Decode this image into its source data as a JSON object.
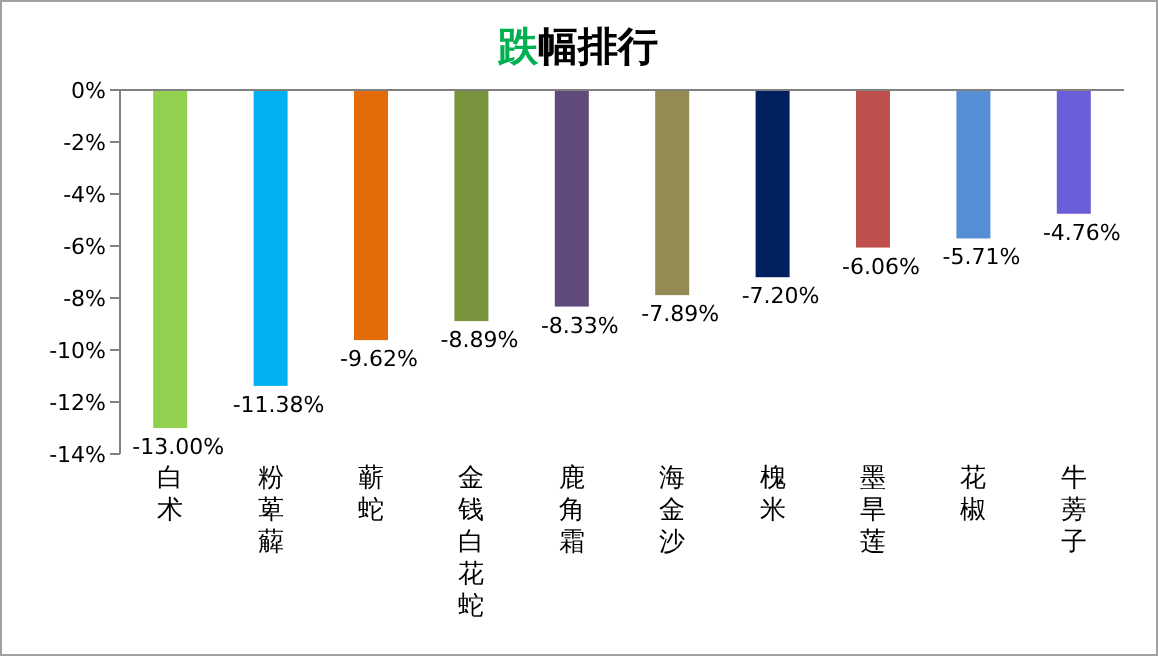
{
  "chart_data": {
    "type": "bar",
    "title": "跌幅排行",
    "categories": [
      "白术",
      "粉萆薢",
      "蕲蛇",
      "金钱白花蛇",
      "鹿角霜",
      "海金沙",
      "槐米",
      "墨旱莲",
      "花椒",
      "牛蒡子"
    ],
    "values": [
      -13.0,
      -11.38,
      -9.62,
      -8.89,
      -8.33,
      -7.89,
      -7.2,
      -6.06,
      -5.71,
      -4.76
    ],
    "colors": [
      "#92d050",
      "#00b0f0",
      "#e36c09",
      "#77933c",
      "#604a7b",
      "#948a54",
      "#002060",
      "#c0504d",
      "#558ed5",
      "#6a5fd8"
    ],
    "value_labels": [
      "-13.00%",
      "-11.38%",
      "-9.62%",
      "-8.89%",
      "-8.33%",
      "-7.89%",
      "-7.20%",
      "-6.06%",
      "-5.71%",
      "-4.76%"
    ],
    "ylim": [
      -14,
      0
    ],
    "yticks": [
      {
        "value": 0,
        "label": "0%"
      },
      {
        "value": -2,
        "label": "-2%"
      },
      {
        "value": -4,
        "label": "-4%"
      },
      {
        "value": -6,
        "label": "-6%"
      },
      {
        "value": -8,
        "label": "-8%"
      },
      {
        "value": -10,
        "label": "-10%"
      },
      {
        "value": -12,
        "label": "-12%"
      },
      {
        "value": -14,
        "label": "-14%"
      }
    ],
    "grid": false
  }
}
